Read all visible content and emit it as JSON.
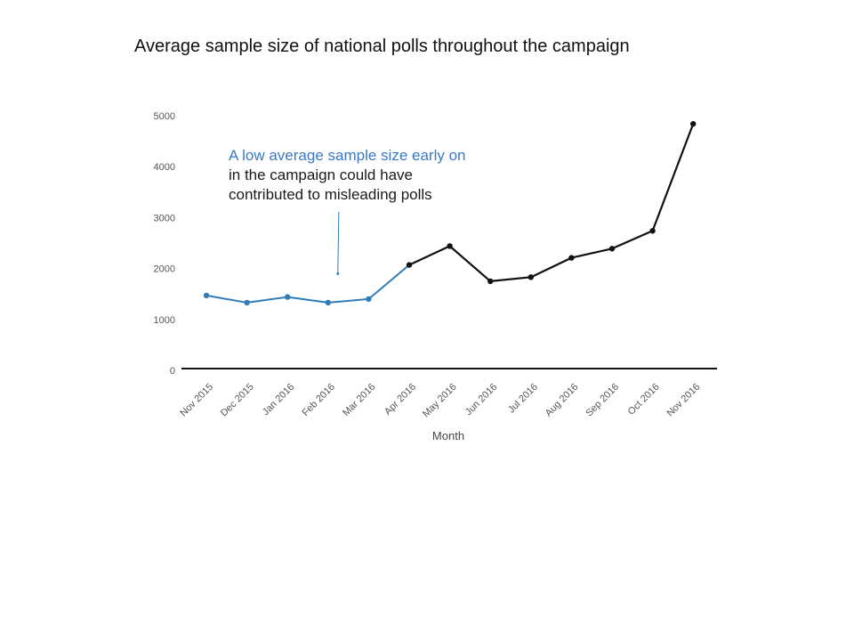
{
  "title": "Average sample size of national polls throughout the campaign",
  "annotation": {
    "line1": "A low average sample size early on",
    "line2": "in the campaign could have",
    "line3": "contributed to misleading polls"
  },
  "colors": {
    "highlight": "#2f7cb8",
    "main": "#111111",
    "annotation_text": "#3a78c4"
  },
  "chart_data": {
    "type": "line",
    "xlabel": "Month",
    "ylabel": "",
    "ylim": [
      0,
      5000
    ],
    "yticks": [
      0,
      1000,
      2000,
      3000,
      4000,
      5000
    ],
    "grid": false,
    "categories": [
      "Nov 2015",
      "Dec 2015",
      "Jan 2016",
      "Feb 2016",
      "Mar 2016",
      "Apr 2016",
      "May 2016",
      "Jun 2016",
      "Jul 2016",
      "Aug 2016",
      "Sep 2016",
      "Oct 2016",
      "Nov 2016"
    ],
    "values": [
      1470,
      1330,
      1440,
      1330,
      1400,
      2070,
      2440,
      1750,
      1830,
      2210,
      2390,
      2740,
      4840
    ],
    "highlight_through": "Apr 2016",
    "annotation_target": {
      "x": "Feb 2016",
      "y": 1900
    }
  }
}
